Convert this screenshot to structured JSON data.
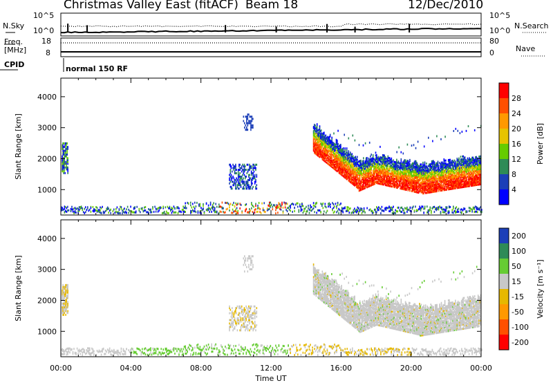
{
  "header": {
    "site": "Christmas Valley East (fitACF)",
    "beam": "Beam 18",
    "date": "12/Dec/2010"
  },
  "noise_panel": {
    "left_label": "N.Sky",
    "right_label": "N.Search",
    "left_ticks": [
      "10^5",
      "10^0"
    ],
    "right_ticks": [
      "10^5",
      "10^0"
    ]
  },
  "freq_panel": {
    "left_label_1": "Freq.",
    "left_label_2": "[MHz]",
    "right_label": "Nave",
    "left_ticks": [
      "18",
      "8"
    ],
    "right_ticks": [
      "80",
      "0"
    ]
  },
  "cpid_panel": {
    "label": "CPID",
    "program": "normal 150 RF"
  },
  "chart_data": [
    {
      "type": "heatmap",
      "name": "power",
      "ylabel": "Slant Range [km]",
      "y_ticks": [
        "1000",
        "2000",
        "3000",
        "4000"
      ],
      "ylim": [
        180,
        4600
      ],
      "x_ticks": [
        "00:00",
        "04:00",
        "08:00",
        "12:00",
        "16:00",
        "20:00",
        "00:00"
      ],
      "colorbar_label": "Power [dB]",
      "colorbar_ticks": [
        "4",
        "8",
        "12",
        "16",
        "20",
        "24",
        "28"
      ],
      "colors": [
        "#0000ff",
        "#1c3fb8",
        "#2e8b57",
        "#66cc00",
        "#e6c300",
        "#ff9900",
        "#ff5000",
        "#ff0000"
      ]
    },
    {
      "type": "heatmap",
      "name": "velocity",
      "ylabel": "Slant Range [km]",
      "y_ticks": [
        "1000",
        "2000",
        "3000",
        "4000"
      ],
      "ylim": [
        180,
        4600
      ],
      "x_ticks": [
        "00:00",
        "04:00",
        "08:00",
        "12:00",
        "16:00",
        "20:00",
        "00:00"
      ],
      "xlabel": "Time UT",
      "colorbar_label": "Velocity [m s⁻¹]",
      "colorbar_ticks": [
        "200",
        "100",
        "50",
        "15",
        "-15",
        "-50",
        "-100",
        "-200"
      ],
      "colors": [
        "#1c3fb8",
        "#2e8b57",
        "#66cc33",
        "#c8c8c8",
        "#e6b800",
        "#ff9900",
        "#ff5000",
        "#ff0000"
      ]
    }
  ]
}
